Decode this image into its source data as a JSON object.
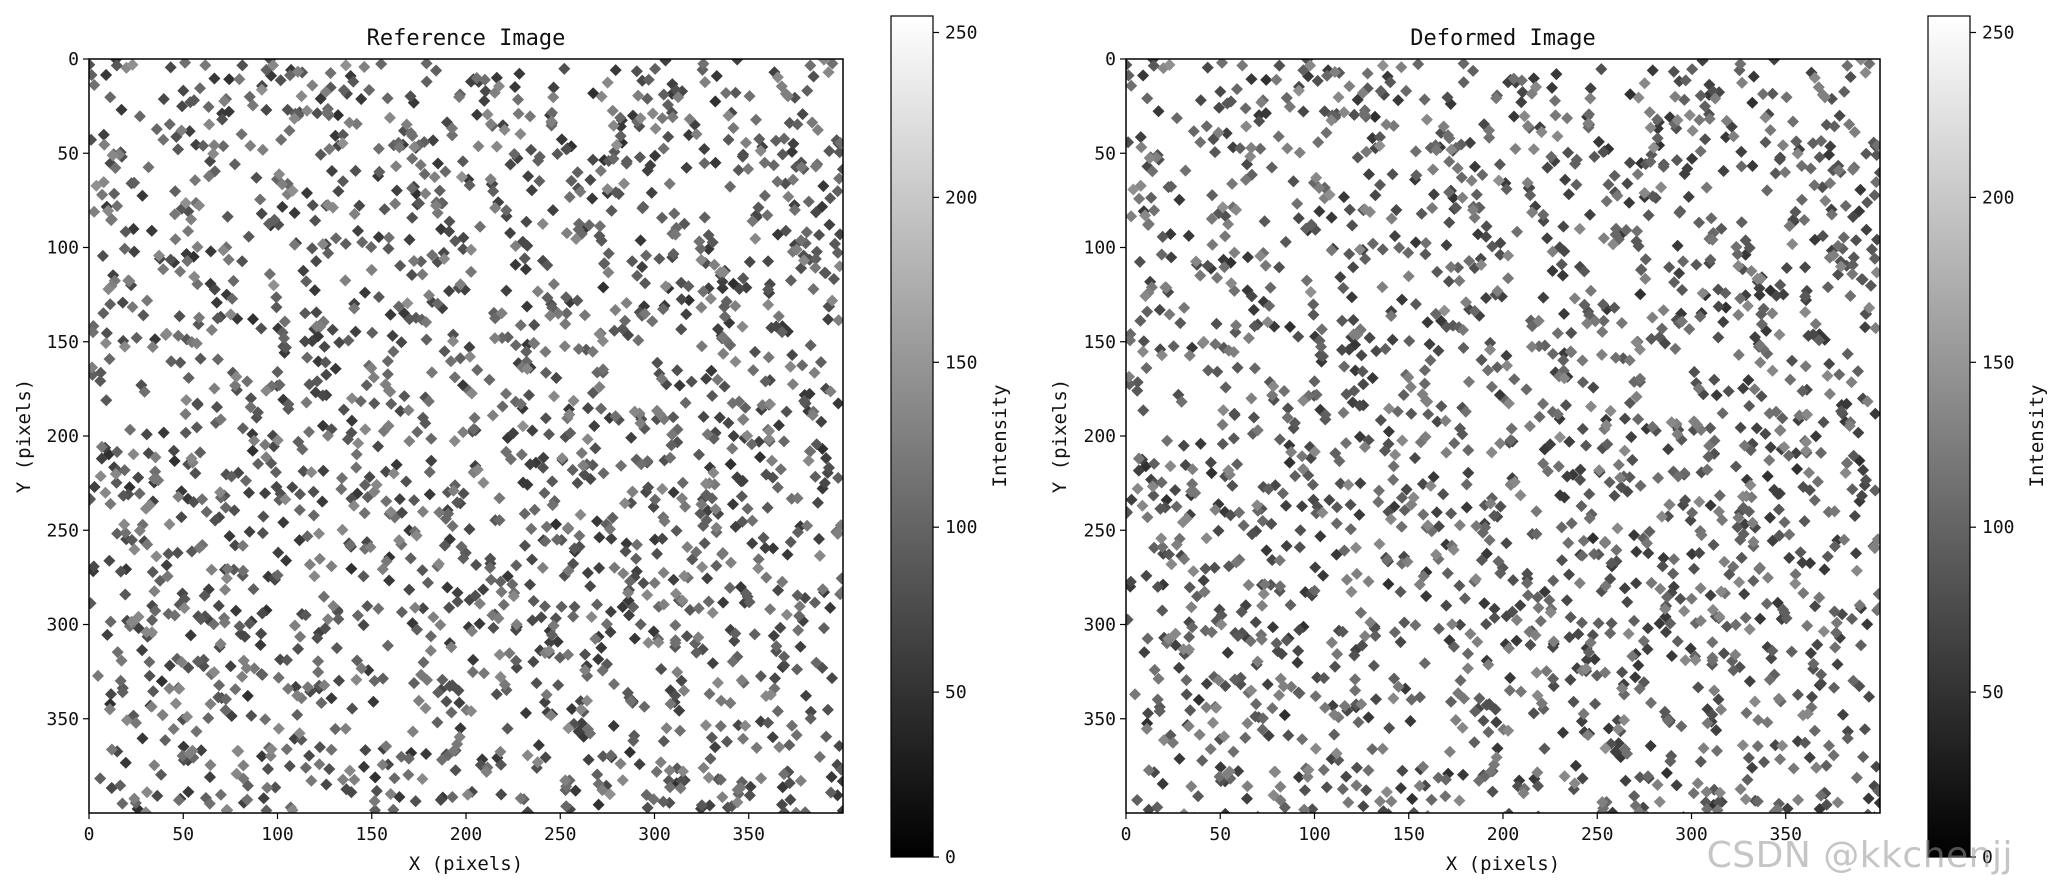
{
  "watermark": "CSDN @kkchenjj",
  "colors": {
    "background": "#ffffff",
    "axis": "#000000"
  },
  "chart_data": [
    {
      "type": "heatmap",
      "title": "Reference Image",
      "xlabel": "X (pixels)",
      "ylabel": "Y (pixels)",
      "xlim": [
        0,
        400
      ],
      "ylim": [
        400,
        0
      ],
      "xticks": [
        0,
        50,
        100,
        150,
        200,
        250,
        300,
        350
      ],
      "yticks": [
        0,
        50,
        100,
        150,
        200,
        250,
        300,
        350
      ],
      "colormap": "gray",
      "colorbar": {
        "label": "Intensity",
        "range": [
          0,
          255
        ],
        "ticks": [
          0,
          50,
          100,
          150,
          200,
          250
        ]
      },
      "content": {
        "pattern": "random speckle",
        "speckle_shape": "diamond",
        "background_intensity": 255,
        "approx_speckle_count": 2000,
        "intensity_range": [
          50,
          140
        ],
        "seed": 7
      }
    },
    {
      "type": "heatmap",
      "title": "Deformed Image",
      "xlabel": "X (pixels)",
      "ylabel": "Y (pixels)",
      "xlim": [
        0,
        400
      ],
      "ylim": [
        400,
        0
      ],
      "xticks": [
        0,
        50,
        100,
        150,
        200,
        250,
        300,
        350
      ],
      "yticks": [
        0,
        50,
        100,
        150,
        200,
        250,
        300,
        350
      ],
      "colormap": "gray",
      "colorbar": {
        "label": "Intensity",
        "range": [
          0,
          255
        ],
        "ticks": [
          0,
          50,
          100,
          150,
          200,
          250
        ]
      },
      "content": {
        "pattern": "random speckle (deformed, slightly stretched)",
        "speckle_shape": "diamond",
        "background_intensity": 255,
        "approx_speckle_count": 2000,
        "intensity_range": [
          50,
          140
        ],
        "seed": 7,
        "stretch_y": 1.03
      }
    }
  ]
}
